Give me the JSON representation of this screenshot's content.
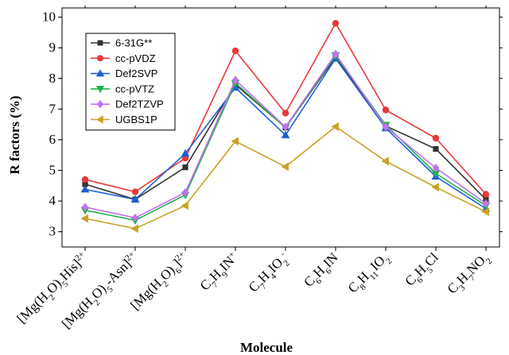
{
  "chart_data": {
    "type": "line",
    "xlabel": "Molecule",
    "ylabel": "R factors (%)",
    "ylim": [
      2.5,
      10.3
    ],
    "yticks": [
      3,
      4,
      5,
      6,
      7,
      8,
      9,
      10
    ],
    "legend_position": "top-left",
    "categories": [
      [
        {
          "t": "[Mg(H"
        },
        {
          "t": "2",
          "sub": true
        },
        {
          "t": "O)"
        },
        {
          "t": "5",
          "sub": true
        },
        {
          "t": "His]"
        },
        {
          "t": "2+",
          "sup": true
        }
      ],
      [
        {
          "t": "[Mg(H"
        },
        {
          "t": "2",
          "sub": true
        },
        {
          "t": "O)"
        },
        {
          "t": "5",
          "sub": true
        },
        {
          "t": "-Asn]"
        },
        {
          "t": "2+",
          "sup": true
        }
      ],
      [
        {
          "t": "[Mg(H"
        },
        {
          "t": "2",
          "sub": true
        },
        {
          "t": "O)"
        },
        {
          "t": "6",
          "sub": true
        },
        {
          "t": "]"
        },
        {
          "t": "2+",
          "sup": true
        }
      ],
      [
        {
          "t": "C"
        },
        {
          "t": "7",
          "sub": true
        },
        {
          "t": "H"
        },
        {
          "t": "9",
          "sub": true
        },
        {
          "t": "IN"
        },
        {
          "t": "+",
          "sup": true
        }
      ],
      [
        {
          "t": "C"
        },
        {
          "t": "7",
          "sub": true
        },
        {
          "t": "H"
        },
        {
          "t": "4",
          "sub": true
        },
        {
          "t": "IO"
        },
        {
          "t": "2",
          "sub": true
        },
        {
          "t": "-",
          "sup": true
        }
      ],
      [
        {
          "t": "C"
        },
        {
          "t": "6",
          "sub": true
        },
        {
          "t": "H"
        },
        {
          "t": "6",
          "sub": true
        },
        {
          "t": "IN"
        }
      ],
      [
        {
          "t": "C"
        },
        {
          "t": "8",
          "sub": true
        },
        {
          "t": "H"
        },
        {
          "t": "11",
          "sub": true
        },
        {
          "t": "IO"
        },
        {
          "t": "2",
          "sub": true
        }
      ],
      [
        {
          "t": "C"
        },
        {
          "t": "6",
          "sub": true
        },
        {
          "t": "H"
        },
        {
          "t": "5",
          "sub": true
        },
        {
          "t": "Cl"
        }
      ],
      [
        {
          "t": "C"
        },
        {
          "t": "3",
          "sub": true
        },
        {
          "t": "H"
        },
        {
          "t": "7",
          "sub": true
        },
        {
          "t": "NO"
        },
        {
          "t": "2",
          "sub": true
        }
      ]
    ],
    "series": [
      {
        "name": "6-31G**",
        "color": "#333333",
        "marker": "square",
        "values": [
          4.55,
          4.05,
          5.1,
          7.8,
          6.4,
          8.7,
          6.45,
          5.7,
          4.05
        ]
      },
      {
        "name": "cc-pVDZ",
        "color": "#e8393a",
        "marker": "circle",
        "values": [
          4.7,
          4.3,
          5.4,
          8.9,
          6.87,
          9.8,
          6.97,
          6.05,
          4.22
        ]
      },
      {
        "name": "Def2SVP",
        "color": "#1f5fd1",
        "marker": "triangle-up",
        "values": [
          4.38,
          4.05,
          5.55,
          7.7,
          6.15,
          8.65,
          6.38,
          4.8,
          3.75
        ]
      },
      {
        "name": "cc-pVTZ",
        "color": "#22b14c",
        "marker": "triangle-down",
        "values": [
          3.7,
          3.37,
          4.2,
          7.85,
          6.4,
          8.75,
          6.48,
          4.9,
          3.85
        ]
      },
      {
        "name": "Def2TZVP",
        "color": "#c471ed",
        "marker": "diamond",
        "values": [
          3.8,
          3.45,
          4.28,
          7.95,
          6.42,
          8.8,
          6.42,
          5.08,
          3.92
        ]
      },
      {
        "name": "UGBS1P",
        "color": "#c9a227",
        "marker": "triangle-left",
        "values": [
          3.43,
          3.1,
          3.85,
          5.95,
          5.12,
          6.43,
          5.3,
          4.45,
          3.65
        ]
      }
    ]
  }
}
